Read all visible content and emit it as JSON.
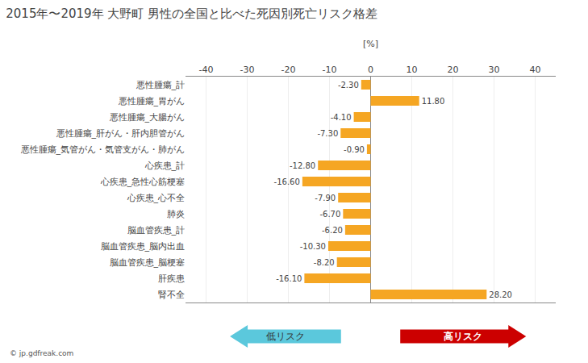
{
  "chart_data": {
    "type": "bar",
    "orientation": "horizontal",
    "title": "2015年〜2019年 大野町 男性の全国と比べた死因別死亡リスク格差",
    "xlabel": "[%]",
    "categories": [
      "悪性腫瘍_計",
      "悪性腫瘍_胃がん",
      "悪性腫瘍_大腸がん",
      "悪性腫瘍_肝がん・肝内胆管がん",
      "悪性腫瘍_気管がん・気管支がん・肺がん",
      "心疾患_計",
      "心疾患_急性心筋梗塞",
      "心疾患_心不全",
      "肺炎",
      "脳血管疾患_計",
      "脳血管疾患_脳内出血",
      "脳血管疾患_脳梗塞",
      "肝疾患",
      "腎不全"
    ],
    "values": [
      -2.3,
      11.8,
      -4.1,
      -7.3,
      -0.9,
      -12.8,
      -16.6,
      -7.9,
      -6.7,
      -6.2,
      -10.3,
      -8.2,
      -16.1,
      28.2
    ],
    "value_labels": [
      "-2.30",
      "11.80",
      "-4.10",
      "-7.30",
      "-0.90",
      "-12.80",
      "-16.60",
      "-7.90",
      "-6.70",
      "-6.20",
      "-10.30",
      "-8.20",
      "-16.10",
      "28.20"
    ],
    "data_labels": true,
    "color": "#F5A623",
    "xlim": [
      -45,
      45
    ],
    "xticks": [
      -40,
      -30,
      -20,
      -10,
      0,
      10,
      20,
      30,
      40
    ],
    "grid": true,
    "annotations": [
      {
        "text": "低リスク",
        "color": "#5BC8DC"
      },
      {
        "text": "高リスク",
        "color": "#CC0000"
      },
      {
        "text": "© jp.gdfreak.com"
      }
    ]
  }
}
